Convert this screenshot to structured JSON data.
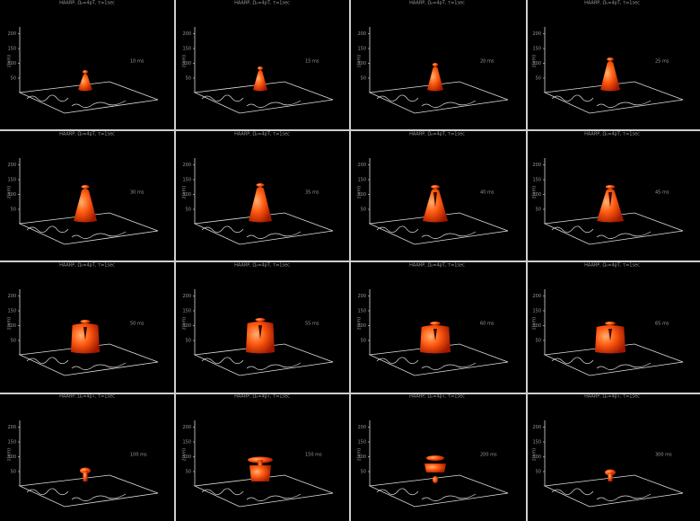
{
  "axis": {
    "label": "z(km)",
    "ticks": [
      "50",
      "100",
      "150",
      "200"
    ]
  },
  "panels": [
    {
      "title": "HAARP, Ω₀=4pT, τ=1sec",
      "time": "10 ms"
    },
    {
      "title": "HAARP, Ω₀=4pT, τ=1sec",
      "time": "15 ms"
    },
    {
      "title": "HAARP, Ω₀=4pT, τ=1sec",
      "time": "20 ms"
    },
    {
      "title": "HAARP, Ω₀=4pT, τ=1sec",
      "time": "25 ms"
    },
    {
      "title": "HAARP, Ω₀=4pT, τ=1sec",
      "time": "30 ms"
    },
    {
      "title": "HAARP, Ω₀=4pT, τ=1sec",
      "time": "35 ms"
    },
    {
      "title": "HAARP, Ω₀=4pT, τ=1sec",
      "time": "40 ms"
    },
    {
      "title": "HAARP, Ω₀=4pT, τ=1sec",
      "time": "45 ms"
    },
    {
      "title": "HAARP, Ω₀=4pT, τ=1sec",
      "time": "50 ms"
    },
    {
      "title": "HAARP, Ω₀=4pT, τ=1sec",
      "time": "55 ms"
    },
    {
      "title": "HAARP, Ω₀=4pT, τ=1sec",
      "time": "60 ms"
    },
    {
      "title": "HAARP, Ω₀=4pT, τ=1sec",
      "time": "65 ms"
    },
    {
      "title": "HAARP, Ω₀=4pT, τ=1sec",
      "time": "100 ms"
    },
    {
      "title": "HAARP, Ω₀=4pT, τ=1sec",
      "time": "150 ms"
    },
    {
      "title": "HAARP, Ω₀=4pT, τ=1sec",
      "time": "200 ms"
    },
    {
      "title": "HAARP, Ω₀=4pT, τ=1sec",
      "time": "300 ms"
    }
  ]
}
